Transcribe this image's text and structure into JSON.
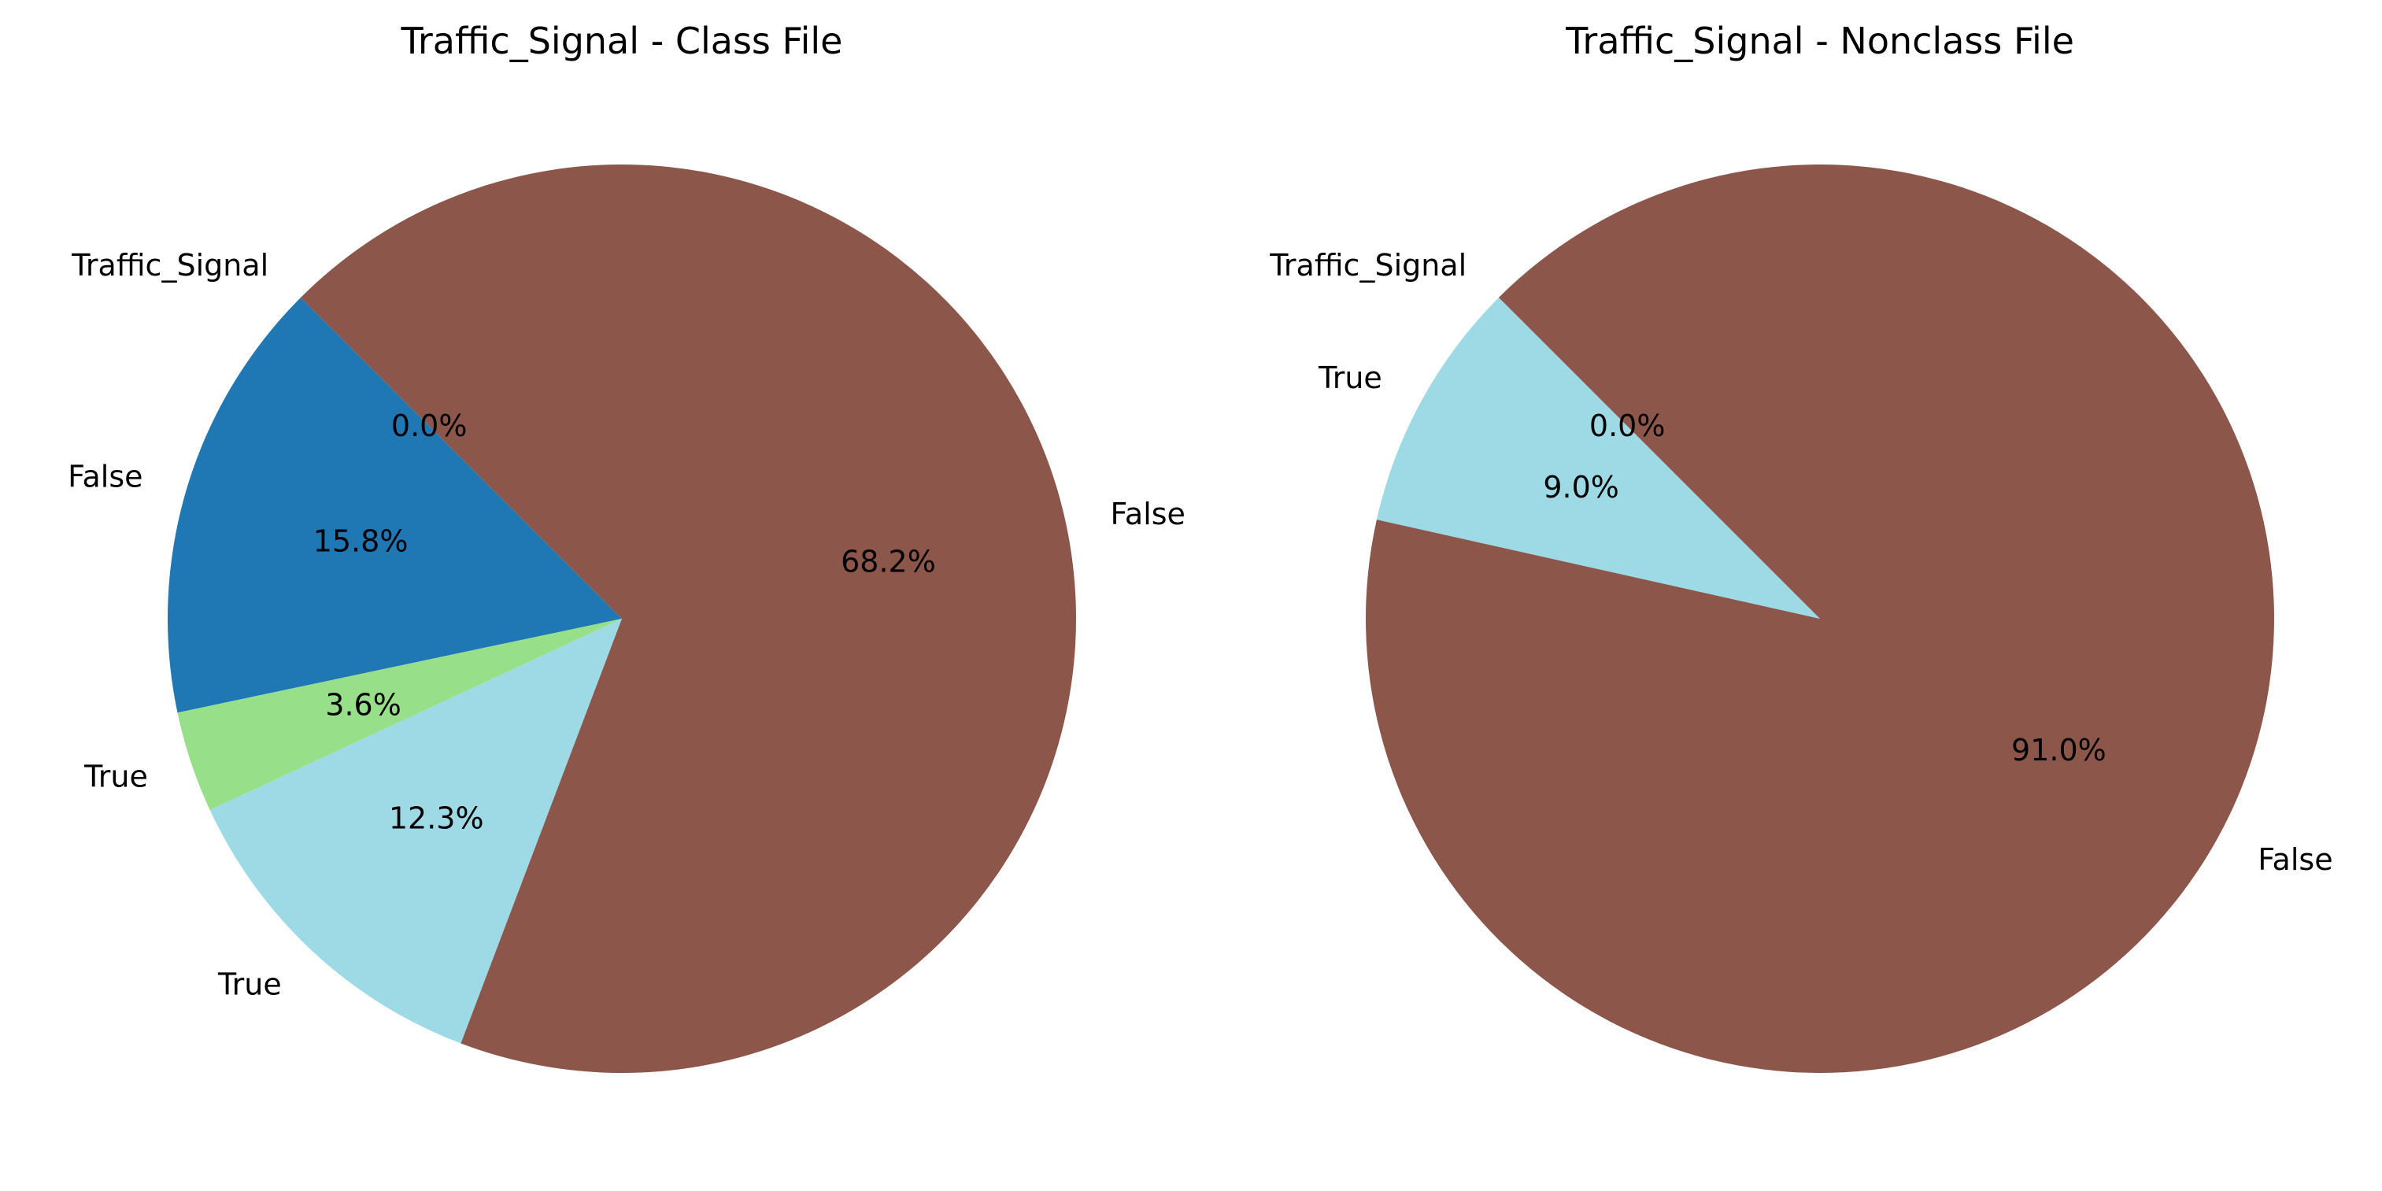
{
  "chart_data": [
    {
      "type": "pie",
      "title": "Traffic_Signal - Class File",
      "start_angle": 135,
      "direction": "counterclockwise",
      "slices": [
        {
          "label": "Traffic_Signal",
          "value": 0.0,
          "percent_label": "0.0%",
          "color": "#2e91e5"
        },
        {
          "label": "False",
          "value": 15.8,
          "percent_label": "15.8%",
          "color": "#1f77b4"
        },
        {
          "label": "True",
          "value": 3.6,
          "percent_label": "3.6%",
          "color": "#98df8a"
        },
        {
          "label": "True",
          "value": 12.3,
          "percent_label": "12.3%",
          "color": "#9edae5"
        },
        {
          "label": "False",
          "value": 68.2,
          "percent_label": "68.2%",
          "color": "#8c564b"
        }
      ]
    },
    {
      "type": "pie",
      "title": "Traffic_Signal - Nonclass File",
      "start_angle": 135,
      "direction": "counterclockwise",
      "slices": [
        {
          "label": "Traffic_Signal",
          "value": 0.0,
          "percent_label": "0.0%",
          "color": "#2e91e5"
        },
        {
          "label": "True",
          "value": 9.0,
          "percent_label": "9.0%",
          "color": "#9edae5"
        },
        {
          "label": "False",
          "value": 91.0,
          "percent_label": "91.0%",
          "color": "#8c564b"
        }
      ]
    }
  ]
}
